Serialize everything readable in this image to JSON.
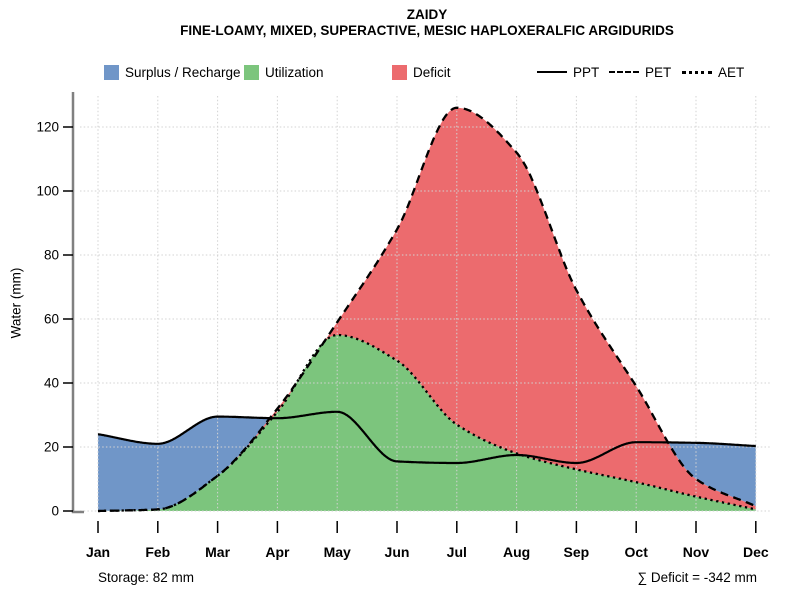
{
  "title": "ZAIDY",
  "subtitle": "FINE-LOAMY, MIXED, SUPERACTIVE, MESIC HAPLOXERALFIC ARGIDURIDS",
  "ylabel": "Water (mm)",
  "annotations": {
    "storage": "Storage: 82 mm",
    "deficit_sum": "∑ Deficit = -342 mm"
  },
  "legend": {
    "fills": [
      {
        "label": "Surplus / Recharge",
        "color_key": "surplus"
      },
      {
        "label": "Utilization",
        "color_key": "utilization"
      },
      {
        "label": "Deficit",
        "color_key": "deficit"
      }
    ],
    "lines": [
      {
        "label": "PPT",
        "style": "solid"
      },
      {
        "label": "PET",
        "style": "dashed"
      },
      {
        "label": "AET",
        "style": "dotted"
      }
    ]
  },
  "colors": {
    "surplus": "#7096C8",
    "utilization": "#7CC57D",
    "deficit": "#EC6B6E",
    "line": "#000000",
    "grid": "#D3D3D3",
    "axis": "#808080"
  },
  "chart_data": {
    "type": "area",
    "title": "ZAIDY",
    "subtitle": "FINE-LOAMY, MIXED, SUPERACTIVE, MESIC HAPLOXERALFIC ARGIDURIDS",
    "xlabel": "",
    "ylabel": "Water (mm)",
    "categories": [
      "Jan",
      "Feb",
      "Mar",
      "Apr",
      "May",
      "Jun",
      "Jul",
      "Aug",
      "Sep",
      "Oct",
      "Nov",
      "Dec"
    ],
    "ylim": [
      0,
      130
    ],
    "yticks": [
      0,
      20,
      40,
      60,
      80,
      100,
      120
    ],
    "grid": true,
    "legend_position": "top",
    "series": [
      {
        "name": "PPT",
        "style": "solid",
        "values": [
          24,
          21,
          29.5,
          29,
          31,
          15.5,
          15,
          17.5,
          15,
          21.5,
          21.3,
          20.3
        ]
      },
      {
        "name": "PET",
        "style": "dashed",
        "values": [
          0,
          0.5,
          11,
          32,
          59,
          88,
          126,
          112,
          69,
          39,
          10,
          1.5
        ]
      },
      {
        "name": "AET",
        "style": "dotted",
        "values": [
          0,
          0.5,
          11,
          31,
          55,
          47,
          27,
          18,
          13,
          9,
          4.5,
          0.5
        ]
      }
    ],
    "areas": [
      {
        "name": "Surplus / Recharge",
        "between": [
          "PPT",
          "PET"
        ],
        "where": "PPT>PET",
        "color_key": "surplus"
      },
      {
        "name": "Utilization",
        "between": [
          "AET",
          "zero"
        ],
        "where": "AET>0",
        "color_key": "utilization"
      },
      {
        "name": "Deficit",
        "between": [
          "PET",
          "AET"
        ],
        "where": "PET>AET",
        "color_key": "deficit"
      }
    ]
  }
}
